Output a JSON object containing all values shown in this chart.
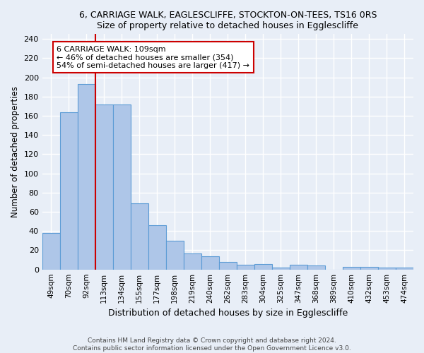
{
  "title": "6, CARRIAGE WALK, EAGLESCLIFFE, STOCKTON-ON-TEES, TS16 0RS",
  "subtitle": "Size of property relative to detached houses in Egglescliffe",
  "xlabel": "Distribution of detached houses by size in Egglescliffe",
  "ylabel": "Number of detached properties",
  "categories": [
    "49sqm",
    "70sqm",
    "92sqm",
    "113sqm",
    "134sqm",
    "155sqm",
    "177sqm",
    "198sqm",
    "219sqm",
    "240sqm",
    "262sqm",
    "283sqm",
    "304sqm",
    "325sqm",
    "347sqm",
    "368sqm",
    "389sqm",
    "410sqm",
    "432sqm",
    "453sqm",
    "474sqm"
  ],
  "values": [
    38,
    164,
    193,
    172,
    172,
    69,
    46,
    30,
    17,
    14,
    8,
    5,
    6,
    2,
    5,
    4,
    0,
    3,
    3,
    2,
    2
  ],
  "bar_color": "#aec6e8",
  "bar_edge_color": "#5b9bd5",
  "background_color": "#e8eef7",
  "grid_color": "#ffffff",
  "annotation_text": "6 CARRIAGE WALK: 109sqm\n← 46% of detached houses are smaller (354)\n54% of semi-detached houses are larger (417) →",
  "annotation_box_color": "#ffffff",
  "annotation_border_color": "#cc0000",
  "red_line_x": 2.5,
  "ylim": [
    0,
    245
  ],
  "yticks": [
    0,
    20,
    40,
    60,
    80,
    100,
    120,
    140,
    160,
    180,
    200,
    220,
    240
  ],
  "footer": "Contains HM Land Registry data © Crown copyright and database right 2024.\nContains public sector information licensed under the Open Government Licence v3.0."
}
